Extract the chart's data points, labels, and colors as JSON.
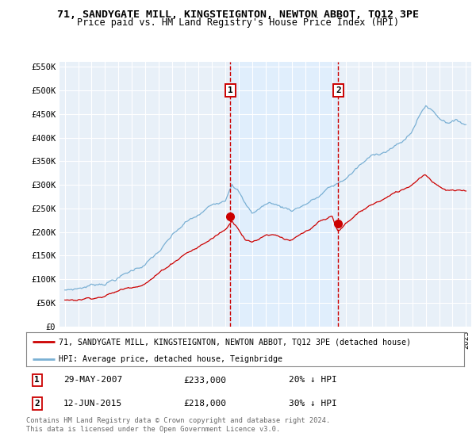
{
  "title": "71, SANDYGATE MILL, KINGSTEIGNTON, NEWTON ABBOT, TQ12 3PE",
  "subtitle": "Price paid vs. HM Land Registry's House Price Index (HPI)",
  "legend_line1": "71, SANDYGATE MILL, KINGSTEIGNTON, NEWTON ABBOT, TQ12 3PE (detached house)",
  "legend_line2": "HPI: Average price, detached house, Teignbridge",
  "footnote": "Contains HM Land Registry data © Crown copyright and database right 2024.\nThis data is licensed under the Open Government Licence v3.0.",
  "marker1_date": "29-MAY-2007",
  "marker1_price": "£233,000",
  "marker1_hpi": "20% ↓ HPI",
  "marker2_date": "12-JUN-2015",
  "marker2_price": "£218,000",
  "marker2_hpi": "30% ↓ HPI",
  "red_color": "#cc0000",
  "blue_color": "#7ab0d4",
  "shade_color": "#ddeeff",
  "background_color": "#e8f0f8",
  "marker1_x": 2007.38,
  "marker2_x": 2015.45,
  "marker1_y": 233000,
  "marker2_y": 218000,
  "ylim": [
    0,
    560000
  ],
  "xlim_min": 1994.6,
  "xlim_max": 2025.4
}
